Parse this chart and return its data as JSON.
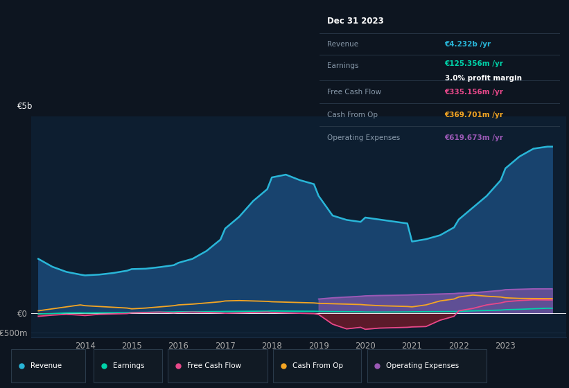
{
  "bg_color": "#0d1520",
  "plot_bg_color": "#0d1e30",
  "grid_color": "#1a2e45",
  "years": [
    2013.0,
    2013.3,
    2013.6,
    2013.9,
    2014.0,
    2014.3,
    2014.6,
    2014.9,
    2015.0,
    2015.3,
    2015.6,
    2015.9,
    2016.0,
    2016.3,
    2016.6,
    2016.9,
    2017.0,
    2017.3,
    2017.6,
    2017.9,
    2018.0,
    2018.3,
    2018.6,
    2018.9,
    2019.0,
    2019.3,
    2019.6,
    2019.9,
    2020.0,
    2020.3,
    2020.6,
    2020.9,
    2021.0,
    2021.3,
    2021.6,
    2021.9,
    2022.0,
    2022.3,
    2022.6,
    2022.9,
    2023.0,
    2023.3,
    2023.6,
    2023.9,
    2024.0
  ],
  "revenue": [
    1380,
    1180,
    1050,
    980,
    960,
    980,
    1020,
    1080,
    1120,
    1130,
    1170,
    1220,
    1280,
    1380,
    1580,
    1870,
    2150,
    2450,
    2850,
    3150,
    3450,
    3520,
    3380,
    3280,
    2980,
    2480,
    2370,
    2320,
    2430,
    2380,
    2330,
    2280,
    1820,
    1880,
    1980,
    2180,
    2380,
    2680,
    2980,
    3380,
    3680,
    3980,
    4180,
    4232,
    4232
  ],
  "earnings": [
    -20,
    -10,
    5,
    8,
    5,
    8,
    10,
    12,
    18,
    22,
    28,
    32,
    36,
    38,
    40,
    42,
    44,
    46,
    48,
    50,
    55,
    52,
    50,
    48,
    45,
    40,
    38,
    35,
    30,
    28,
    30,
    32,
    35,
    38,
    40,
    42,
    44,
    58,
    68,
    78,
    88,
    98,
    112,
    125,
    125
  ],
  "free_cash_flow": [
    -80,
    -50,
    -30,
    -50,
    -60,
    -30,
    -20,
    -10,
    8,
    18,
    28,
    8,
    18,
    28,
    18,
    8,
    -2,
    8,
    18,
    28,
    18,
    8,
    -2,
    -12,
    -32,
    -280,
    -400,
    -360,
    -410,
    -380,
    -370,
    -360,
    -350,
    -340,
    -180,
    -80,
    60,
    120,
    210,
    260,
    290,
    320,
    340,
    335,
    335
  ],
  "cash_from_op": [
    60,
    110,
    160,
    210,
    190,
    170,
    150,
    130,
    110,
    130,
    160,
    190,
    210,
    230,
    260,
    290,
    310,
    320,
    310,
    300,
    290,
    280,
    270,
    260,
    250,
    240,
    230,
    220,
    210,
    190,
    180,
    170,
    160,
    210,
    310,
    360,
    410,
    460,
    430,
    410,
    390,
    375,
    372,
    370,
    370
  ],
  "operating_expenses": [
    0,
    0,
    0,
    0,
    0,
    0,
    0,
    0,
    0,
    0,
    0,
    0,
    0,
    0,
    0,
    0,
    0,
    0,
    0,
    0,
    0,
    0,
    0,
    0,
    360,
    390,
    410,
    430,
    440,
    450,
    455,
    462,
    468,
    478,
    488,
    498,
    508,
    520,
    548,
    578,
    598,
    608,
    618,
    619,
    619
  ],
  "revenue_color": "#29b6d8",
  "earnings_color": "#00d4aa",
  "free_cash_flow_color": "#e8488a",
  "cash_from_op_color": "#f5a623",
  "operating_expenses_color": "#9b59b6",
  "fill_revenue_color": "#1a4a7a",
  "fill_op_exp_color": "#5b2d82",
  "ytick_labels": [
    "-€500m",
    "€0",
    "€5b"
  ],
  "xticks": [
    2014,
    2015,
    2016,
    2017,
    2018,
    2019,
    2020,
    2021,
    2022,
    2023
  ],
  "tooltip": {
    "date": "Dec 31 2023",
    "revenue_label": "Revenue",
    "revenue_val": "€4.232b",
    "earnings_label": "Earnings",
    "earnings_val": "€125.356m",
    "profit_margin": "3.0%",
    "fcf_label": "Free Cash Flow",
    "fcf_val": "€335.156m",
    "cash_op_label": "Cash From Op",
    "cash_op_val": "€369.701m",
    "op_exp_label": "Operating Expenses",
    "op_exp_val": "€619.673m"
  },
  "legend_items": [
    "Revenue",
    "Earnings",
    "Free Cash Flow",
    "Cash From Op",
    "Operating Expenses"
  ],
  "legend_colors": [
    "#29b6d8",
    "#00d4aa",
    "#e8488a",
    "#f5a623",
    "#9b59b6"
  ]
}
